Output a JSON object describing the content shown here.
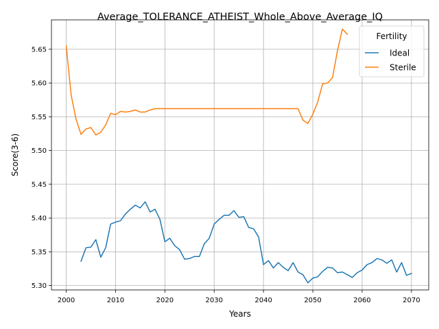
{
  "chart_data": {
    "type": "line",
    "title": "Average_TOLERANCE_ATHEIST_Whole_Above_Average_IQ",
    "xlabel": "Years",
    "ylabel": "Score(3-6)",
    "xlim": [
      1997,
      2073.5
    ],
    "ylim": [
      5.2935,
      5.6935
    ],
    "xticks": [
      2000,
      2010,
      2020,
      2030,
      2040,
      2050,
      2060,
      2070
    ],
    "yticks": [
      5.3,
      5.35,
      5.4,
      5.45,
      5.5,
      5.55,
      5.6,
      5.65
    ],
    "ytick_labels": [
      "5.30",
      "5.35",
      "5.40",
      "5.45",
      "5.50",
      "5.55",
      "5.60",
      "5.65"
    ],
    "grid": true,
    "legend": {
      "title": "Fertility",
      "placement": "top-right"
    },
    "series": [
      {
        "name": "Ideal",
        "color": "#1f77b4",
        "x": [
          2003,
          2004,
          2005,
          2006,
          2007,
          2008,
          2009,
          2010,
          2011,
          2012,
          2013,
          2014,
          2015,
          2016,
          2017,
          2018,
          2019,
          2020,
          2021,
          2022,
          2023,
          2024,
          2025,
          2026,
          2027,
          2028,
          2029,
          2030,
          2031,
          2032,
          2033,
          2034,
          2035,
          2036,
          2037,
          2038,
          2039,
          2040,
          2041,
          2042,
          2043,
          2044,
          2045,
          2046,
          2047,
          2048,
          2049,
          2050,
          2051,
          2052,
          2053,
          2054,
          2055,
          2056,
          2057,
          2058,
          2059,
          2060,
          2061,
          2062,
          2063,
          2064,
          2065,
          2066,
          2067,
          2068,
          2069,
          2070
        ],
        "y": [
          5.336,
          5.356,
          5.357,
          5.368,
          5.342,
          5.356,
          5.391,
          5.394,
          5.396,
          5.406,
          5.413,
          5.419,
          5.415,
          5.424,
          5.409,
          5.413,
          5.398,
          5.365,
          5.37,
          5.359,
          5.353,
          5.339,
          5.34,
          5.343,
          5.343,
          5.362,
          5.37,
          5.391,
          5.398,
          5.404,
          5.404,
          5.411,
          5.401,
          5.402,
          5.386,
          5.384,
          5.372,
          5.331,
          5.337,
          5.326,
          5.334,
          5.327,
          5.322,
          5.334,
          5.32,
          5.316,
          5.304,
          5.311,
          5.313,
          5.321,
          5.327,
          5.326,
          5.319,
          5.32,
          5.316,
          5.312,
          5.319,
          5.323,
          5.331,
          5.334,
          5.34,
          5.338,
          5.333,
          5.338,
          5.32,
          5.334,
          5.315,
          5.318
        ]
      },
      {
        "name": "Sterile",
        "color": "#ff7f0e",
        "x": [
          2000,
          2001,
          2002,
          2003,
          2004,
          2005,
          2006,
          2007,
          2008,
          2009,
          2010,
          2011,
          2012,
          2013,
          2014,
          2015,
          2016,
          2017,
          2018,
          2019,
          2020,
          2021,
          2022,
          2023,
          2024,
          2025,
          2026,
          2027,
          2028,
          2029,
          2030,
          2031,
          2032,
          2033,
          2034,
          2035,
          2036,
          2037,
          2038,
          2039,
          2040,
          2041,
          2042,
          2043,
          2044,
          2045,
          2046,
          2047,
          2048,
          2049,
          2050,
          2051,
          2052,
          2053,
          2054,
          2055,
          2056,
          2057
        ],
        "y": [
          5.655,
          5.582,
          5.546,
          5.524,
          5.532,
          5.534,
          5.523,
          5.527,
          5.538,
          5.555,
          5.553,
          5.558,
          5.557,
          5.558,
          5.56,
          5.557,
          5.557,
          5.56,
          5.562,
          5.562,
          5.562,
          5.562,
          5.562,
          5.562,
          5.562,
          5.562,
          5.562,
          5.562,
          5.562,
          5.562,
          5.562,
          5.562,
          5.562,
          5.562,
          5.562,
          5.562,
          5.562,
          5.562,
          5.562,
          5.562,
          5.562,
          5.562,
          5.562,
          5.562,
          5.562,
          5.562,
          5.562,
          5.562,
          5.545,
          5.54,
          5.554,
          5.572,
          5.599,
          5.6,
          5.608,
          5.648,
          5.68,
          5.672
        ]
      }
    ]
  }
}
